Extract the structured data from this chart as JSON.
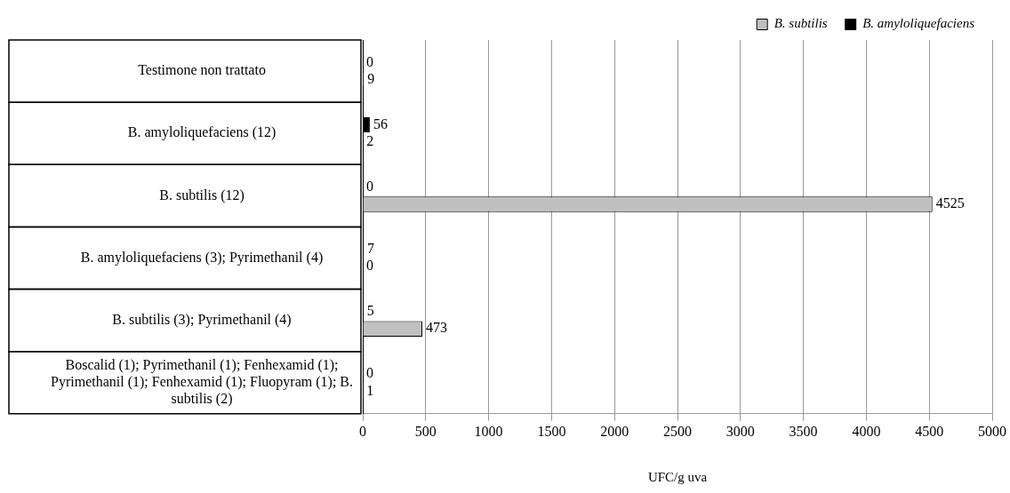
{
  "chart_data": {
    "type": "bar",
    "orientation": "horizontal",
    "xlabel": "UFC/g uva",
    "categories": [
      "Testimone non trattato",
      "B. amyloliquefaciens (12)",
      "B. subtilis (12)",
      "B. amyloliquefaciens (3); Pyrimethanil (4)",
      "B. subtilis (3); Pyrimethanil (4)",
      "Boscalid (1); Pyrimethanil (1); Fenhexamid (1); Pyrimethanil (1); Fenhexamid (1); Fluopyram (1); B. subtilis (2)"
    ],
    "series": [
      {
        "name": "B. amyloliquefaciens",
        "color": "#000000",
        "values": [
          0,
          56,
          0,
          7,
          5,
          0
        ]
      },
      {
        "name": "B. subtilis",
        "color": "#c0c0c0",
        "values": [
          9,
          2,
          4525,
          0,
          473,
          1
        ]
      }
    ],
    "xlim": [
      0,
      5000
    ],
    "xticks": [
      0,
      500,
      1000,
      1500,
      2000,
      2500,
      3000,
      3500,
      4000,
      4500,
      5000
    ],
    "grid": "x",
    "legend": "top right",
    "data_labels": true
  }
}
